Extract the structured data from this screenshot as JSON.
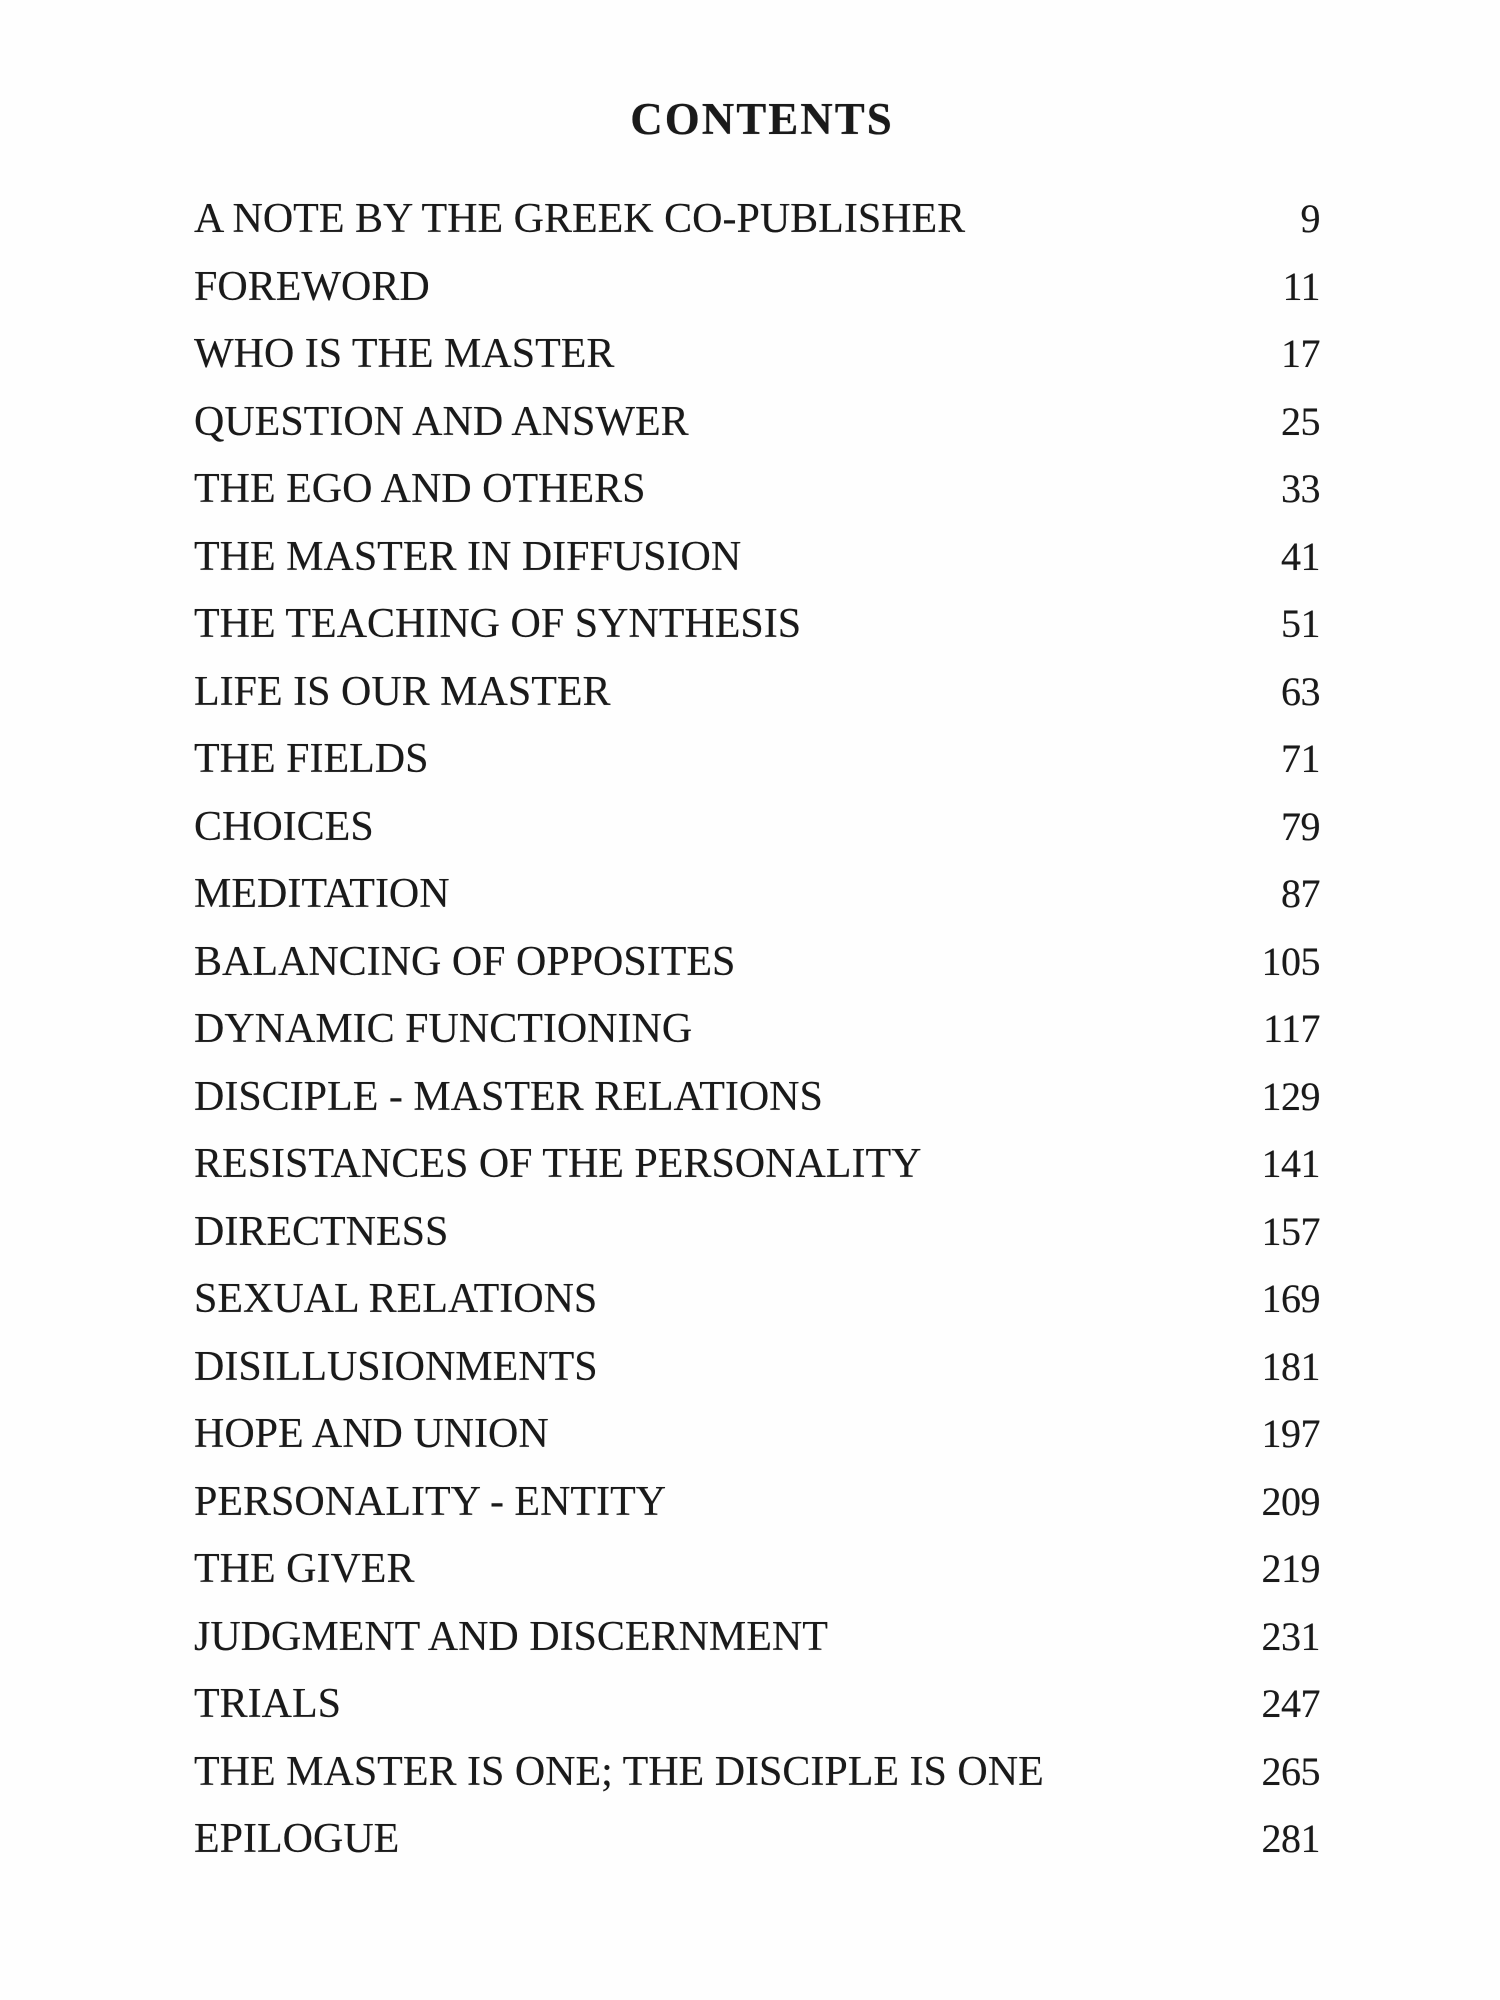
{
  "document": {
    "title": "CONTENTS",
    "entries": [
      {
        "title": "A NOTE BY THE GREEK CO-PUBLISHER",
        "page": "9"
      },
      {
        "title": "FOREWORD",
        "page": "11"
      },
      {
        "title": "WHO IS THE MASTER",
        "page": "17"
      },
      {
        "title": "QUESTION AND ANSWER",
        "page": "25"
      },
      {
        "title": "THE EGO AND OTHERS",
        "page": "33"
      },
      {
        "title": "THE MASTER IN DIFFUSION",
        "page": "41"
      },
      {
        "title": "THE TEACHING OF SYNTHESIS",
        "page": "51"
      },
      {
        "title": "LIFE IS OUR MASTER",
        "page": "63"
      },
      {
        "title": "THE FIELDS",
        "page": "71"
      },
      {
        "title": "CHOICES",
        "page": "79"
      },
      {
        "title": "MEDITATION",
        "page": "87"
      },
      {
        "title": "BALANCING OF OPPOSITES",
        "page": "105"
      },
      {
        "title": "DYNAMIC FUNCTIONING",
        "page": "117"
      },
      {
        "title": "DISCIPLE - MASTER RELATIONS",
        "page": "129"
      },
      {
        "title": "RESISTANCES OF THE PERSONALITY",
        "page": "141"
      },
      {
        "title": "DIRECTNESS",
        "page": "157"
      },
      {
        "title": "SEXUAL RELATIONS",
        "page": "169"
      },
      {
        "title": "DISILLUSIONMENTS",
        "page": "181"
      },
      {
        "title": "HOPE AND UNION",
        "page": "197"
      },
      {
        "title": "PERSONALITY - ENTITY",
        "page": "209"
      },
      {
        "title": "THE GIVER",
        "page": "219"
      },
      {
        "title": "JUDGMENT AND DISCERNMENT",
        "page": "231"
      },
      {
        "title": "TRIALS",
        "page": "247"
      },
      {
        "title": "THE MASTER IS ONE; THE DISCIPLE IS ONE",
        "page": "265"
      },
      {
        "title": "EPILOGUE",
        "page": "281"
      }
    ]
  }
}
